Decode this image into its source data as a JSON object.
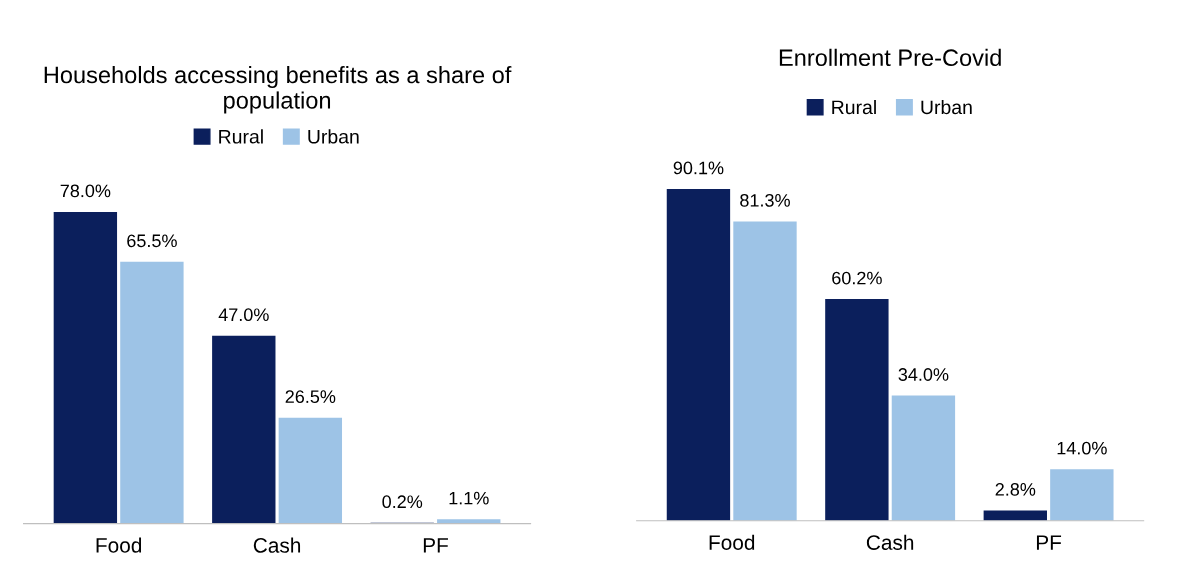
{
  "chart_data": [
    {
      "type": "bar",
      "title": "Households accessing benefits as a share of population",
      "categories": [
        "Food",
        "Cash",
        "PF"
      ],
      "legend": "top",
      "series": [
        {
          "name": "Rural",
          "color": "#0b1f5c",
          "values": [
            78.0,
            47.0,
            0.2
          ],
          "value_labels": [
            "78.0%",
            "47.0%",
            "0.2%"
          ]
        },
        {
          "name": "Urban",
          "color": "#9dc3e6",
          "values": [
            65.5,
            26.5,
            1.1
          ],
          "value_labels": [
            "65.5%",
            "26.5%",
            "1.1%"
          ]
        }
      ]
    },
    {
      "type": "bar",
      "title": "Enrollment Pre-Covid",
      "categories": [
        "Food",
        "Cash",
        "PF"
      ],
      "legend": "top",
      "series": [
        {
          "name": "Rural",
          "color": "#0b1f5c",
          "values": [
            90.1,
            60.2,
            2.8
          ],
          "value_labels": [
            "90.1%",
            "60.2%",
            "2.8%"
          ]
        },
        {
          "name": "Urban",
          "color": "#9dc3e6",
          "values": [
            81.3,
            34.0,
            14.0
          ],
          "value_labels": [
            "81.3%",
            "34.0%",
            "14.0%"
          ]
        }
      ]
    }
  ]
}
